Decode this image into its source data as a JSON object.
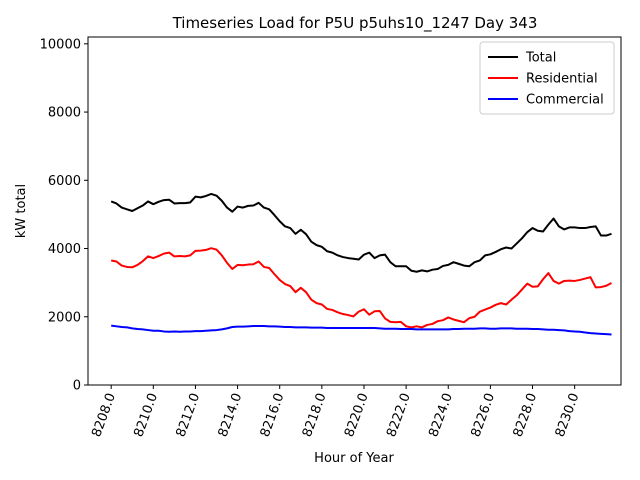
{
  "chart_data": {
    "type": "line",
    "title": "Timeseries Load for P5U p5uhs10_1247  Day 343",
    "xlabel": "Hour of Year",
    "ylabel": "kW total",
    "xlim": [
      8206.9,
      8232.2
    ],
    "ylim": [
      0,
      10200
    ],
    "xticks": [
      8208,
      8210,
      8212,
      8214,
      8216,
      8218,
      8220,
      8222,
      8224,
      8226,
      8228,
      8230
    ],
    "xtick_labels": [
      "8208.0",
      "8210.0",
      "8212.0",
      "8214.0",
      "8216.0",
      "8218.0",
      "8220.0",
      "8222.0",
      "8224.0",
      "8226.0",
      "8228.0",
      "8230.0"
    ],
    "yticks": [
      0,
      2000,
      4000,
      6000,
      8000,
      10000
    ],
    "ytick_labels": [
      "0",
      "2000",
      "4000",
      "6000",
      "8000",
      "10000"
    ],
    "legend_position": "top-right",
    "x": [
      8208.0,
      8208.25,
      8208.5,
      8208.75,
      8209.0,
      8209.25,
      8209.5,
      8209.75,
      8210.0,
      8210.25,
      8210.5,
      8210.75,
      8211.0,
      8211.25,
      8211.5,
      8211.75,
      8212.0,
      8212.25,
      8212.5,
      8212.75,
      8213.0,
      8213.25,
      8213.5,
      8213.75,
      8214.0,
      8214.25,
      8214.5,
      8214.75,
      8215.0,
      8215.25,
      8215.5,
      8215.75,
      8216.0,
      8216.25,
      8216.5,
      8216.75,
      8217.0,
      8217.25,
      8217.5,
      8217.75,
      8218.0,
      8218.25,
      8218.5,
      8218.75,
      8219.0,
      8219.25,
      8219.5,
      8219.75,
      8220.0,
      8220.25,
      8220.5,
      8220.75,
      8221.0,
      8221.25,
      8221.5,
      8221.75,
      8222.0,
      8222.25,
      8222.5,
      8222.75,
      8223.0,
      8223.25,
      8223.5,
      8223.75,
      8224.0,
      8224.25,
      8224.5,
      8224.75,
      8225.0,
      8225.25,
      8225.5,
      8225.75,
      8226.0,
      8226.25,
      8226.5,
      8226.75,
      8227.0,
      8227.25,
      8227.5,
      8227.75,
      8228.0,
      8228.25,
      8228.5,
      8228.75,
      8229.0,
      8229.25,
      8229.5,
      8229.75,
      8230.0,
      8230.25,
      8230.5,
      8230.75,
      8231.0,
      8231.25,
      8231.5,
      8231.75
    ],
    "series": [
      {
        "name": "Total",
        "color": "#000000",
        "values": [
          5380,
          5320,
          5200,
          5150,
          5100,
          5180,
          5260,
          5380,
          5300,
          5370,
          5420,
          5430,
          5320,
          5330,
          5330,
          5350,
          5520,
          5500,
          5540,
          5600,
          5550,
          5400,
          5200,
          5080,
          5230,
          5200,
          5250,
          5260,
          5340,
          5200,
          5150,
          4980,
          4800,
          4650,
          4600,
          4430,
          4550,
          4420,
          4200,
          4100,
          4050,
          3920,
          3880,
          3800,
          3750,
          3720,
          3700,
          3680,
          3820,
          3880,
          3720,
          3800,
          3820,
          3600,
          3480,
          3480,
          3480,
          3350,
          3320,
          3360,
          3330,
          3380,
          3400,
          3490,
          3520,
          3600,
          3550,
          3500,
          3480,
          3600,
          3650,
          3800,
          3830,
          3900,
          3980,
          4030,
          4000,
          4150,
          4300,
          4480,
          4600,
          4520,
          4500,
          4700,
          4880,
          4650,
          4560,
          4620,
          4620,
          4600,
          4600,
          4630,
          4650,
          4380,
          4380,
          4430
        ],
        "data_source_note": ""
      },
      {
        "name": "Residential",
        "color": "#ff0000",
        "values": [
          3650,
          3620,
          3500,
          3460,
          3450,
          3520,
          3630,
          3770,
          3720,
          3780,
          3850,
          3880,
          3770,
          3780,
          3770,
          3800,
          3930,
          3940,
          3960,
          4010,
          3970,
          3800,
          3580,
          3400,
          3520,
          3510,
          3530,
          3540,
          3620,
          3460,
          3430,
          3250,
          3080,
          2960,
          2900,
          2720,
          2850,
          2720,
          2500,
          2400,
          2360,
          2230,
          2200,
          2130,
          2080,
          2050,
          2010,
          2150,
          2220,
          2060,
          2160,
          2170,
          1950,
          1850,
          1840,
          1850,
          1720,
          1690,
          1720,
          1690,
          1760,
          1790,
          1870,
          1900,
          1980,
          1920,
          1880,
          1840,
          1960,
          2000,
          2150,
          2210,
          2270,
          2350,
          2400,
          2360,
          2500,
          2630,
          2800,
          2970,
          2880,
          2890,
          3100,
          3280,
          3050,
          2970,
          3050,
          3060,
          3050,
          3080,
          3120,
          3160,
          2860,
          2870,
          2910,
          2990
        ],
        "data_source_note": ""
      },
      {
        "name": "Commercial",
        "color": "#0000ff",
        "values": [
          1740,
          1720,
          1700,
          1690,
          1660,
          1640,
          1630,
          1610,
          1590,
          1590,
          1570,
          1560,
          1570,
          1560,
          1570,
          1570,
          1580,
          1580,
          1590,
          1600,
          1610,
          1630,
          1660,
          1700,
          1710,
          1710,
          1720,
          1730,
          1730,
          1730,
          1720,
          1720,
          1710,
          1700,
          1700,
          1690,
          1690,
          1690,
          1680,
          1680,
          1680,
          1670,
          1670,
          1670,
          1670,
          1670,
          1670,
          1670,
          1670,
          1670,
          1670,
          1660,
          1650,
          1650,
          1650,
          1640,
          1640,
          1640,
          1630,
          1630,
          1630,
          1630,
          1630,
          1630,
          1630,
          1640,
          1640,
          1650,
          1650,
          1650,
          1660,
          1660,
          1650,
          1650,
          1660,
          1660,
          1660,
          1650,
          1650,
          1650,
          1640,
          1640,
          1630,
          1620,
          1620,
          1610,
          1600,
          1580,
          1570,
          1560,
          1540,
          1520,
          1510,
          1500,
          1490,
          1480
        ],
        "data_source_note": ""
      }
    ]
  }
}
